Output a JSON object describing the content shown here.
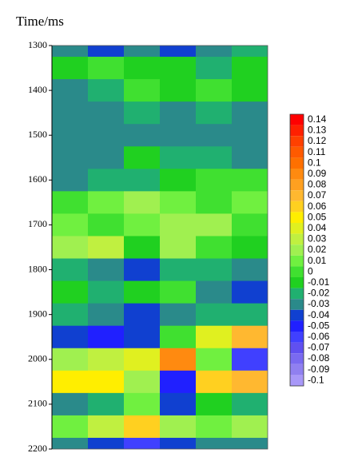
{
  "chart_data": {
    "type": "heatmap",
    "title": "Time/ms",
    "ylim": [
      1300,
      2200
    ],
    "yticks": [
      1300,
      1400,
      1500,
      1600,
      1700,
      1800,
      1900,
      2000,
      2100,
      2200
    ],
    "y": [
      1300,
      1350,
      1400,
      1450,
      1500,
      1550,
      1600,
      1650,
      1700,
      1750,
      1800,
      1850,
      1900,
      1950,
      2000,
      2050,
      2100,
      2150,
      2200
    ],
    "z": [
      [
        -0.03,
        -0.04,
        -0.03,
        -0.04,
        -0.03,
        -0.02
      ],
      [
        -0.01,
        0,
        -0.01,
        -0.01,
        -0.02,
        -0.01
      ],
      [
        -0.03,
        -0.02,
        0,
        -0.01,
        0,
        -0.01
      ],
      [
        -0.03,
        -0.03,
        -0.02,
        -0.03,
        -0.02,
        -0.03
      ],
      [
        -0.03,
        -0.03,
        -0.03,
        -0.03,
        -0.03,
        -0.03
      ],
      [
        -0.03,
        -0.03,
        -0.01,
        -0.02,
        -0.02,
        -0.03
      ],
      [
        -0.03,
        -0.02,
        -0.02,
        -0.01,
        0,
        0
      ],
      [
        0,
        0.01,
        0.02,
        0.01,
        0,
        0.01
      ],
      [
        0.01,
        0,
        0.01,
        0.02,
        0.02,
        0
      ],
      [
        0.02,
        0.03,
        -0.01,
        0.02,
        0,
        -0.01
      ],
      [
        -0.02,
        -0.03,
        -0.04,
        -0.02,
        -0.02,
        -0.03
      ],
      [
        -0.01,
        -0.02,
        -0.01,
        0,
        -0.03,
        -0.04
      ],
      [
        -0.02,
        -0.03,
        -0.04,
        -0.03,
        -0.02,
        -0.02
      ],
      [
        -0.04,
        -0.05,
        -0.04,
        0,
        0.04,
        0.07
      ],
      [
        0.02,
        0.03,
        0.04,
        0.09,
        0.01,
        -0.06
      ],
      [
        0.05,
        0.05,
        0.02,
        -0.05,
        0.06,
        0.07
      ],
      [
        -0.03,
        -0.02,
        0.01,
        -0.04,
        -0.01,
        -0.02
      ],
      [
        0.01,
        0.03,
        0.06,
        0.02,
        0.01,
        0.02
      ],
      [
        -0.03,
        -0.04,
        -0.06,
        -0.04,
        -0.03,
        -0.03
      ]
    ],
    "colorbar_ticks": [
      0.14,
      0.13,
      0.12,
      0.11,
      0.1,
      0.09,
      0.08,
      0.07,
      0.06,
      0.05,
      0.04,
      0.03,
      0.02,
      0.01,
      0,
      -0.01,
      -0.02,
      -0.03,
      -0.04,
      -0.05,
      -0.06,
      -0.07,
      -0.08,
      -0.09,
      -0.1
    ],
    "colors": [
      "#ff0000",
      "#ff2000",
      "#ff4000",
      "#ff5a00",
      "#ff7000",
      "#ff8a10",
      "#ffa020",
      "#ffb830",
      "#ffd020",
      "#ffee00",
      "#e0f020",
      "#c0f040",
      "#a0f050",
      "#70f040",
      "#40e030",
      "#20d020",
      "#20b070",
      "#2a8a8a",
      "#1040d0",
      "#2020ff",
      "#4040ff",
      "#6050f0",
      "#7a6af0",
      "#9080f0",
      "#a898f8"
    ]
  }
}
